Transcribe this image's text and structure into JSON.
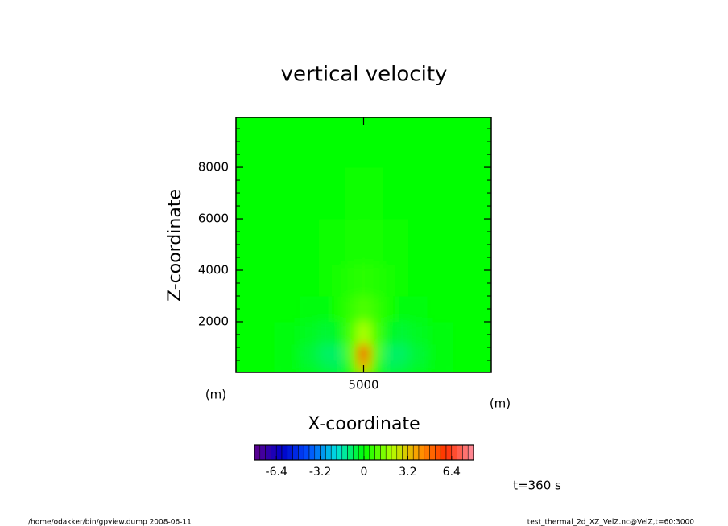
{
  "chart_data": {
    "type": "heatmap",
    "title": "vertical velocity",
    "xlabel": "X-coordinate",
    "ylabel": "Z-coordinate",
    "xunit": "(m)",
    "yunit": "(m)",
    "x": [
      0,
      1000,
      2000,
      3000,
      3500,
      4000,
      4500,
      5000,
      5500,
      6000,
      6500,
      7000,
      8000,
      9000,
      10000
    ],
    "y": [
      250,
      750,
      1500,
      2500,
      3500,
      5000,
      7000,
      9000
    ],
    "z": [
      [
        0,
        0,
        -0.1,
        -0.4,
        -0.7,
        -0.8,
        0.5,
        3.5,
        0.5,
        -0.8,
        -0.7,
        -0.4,
        -0.1,
        0,
        0
      ],
      [
        0,
        0,
        -0.1,
        -0.5,
        -0.9,
        -0.9,
        1.0,
        5.5,
        1.0,
        -0.9,
        -0.9,
        -0.5,
        -0.1,
        0,
        0
      ],
      [
        0,
        0,
        -0.1,
        -0.3,
        -0.5,
        -0.3,
        0.8,
        2.0,
        0.8,
        -0.3,
        -0.5,
        -0.3,
        -0.1,
        0,
        0
      ],
      [
        0,
        0,
        0,
        -0.1,
        -0.1,
        0.2,
        0.6,
        0.9,
        0.6,
        0.2,
        -0.1,
        -0.1,
        0,
        0,
        0
      ],
      [
        0,
        0,
        0,
        0,
        0.1,
        0.2,
        0.4,
        0.5,
        0.4,
        0.2,
        0.1,
        0,
        0,
        0,
        0
      ],
      [
        0,
        0,
        0,
        0,
        0.1,
        0.15,
        0.2,
        0.25,
        0.2,
        0.15,
        0.1,
        0,
        0,
        0,
        0
      ],
      [
        0,
        0,
        0,
        0,
        0,
        0.05,
        0.1,
        0.1,
        0.1,
        0.05,
        0,
        0,
        0,
        0,
        0
      ],
      [
        0,
        0,
        0,
        0,
        0,
        0,
        0,
        0,
        0,
        0,
        0,
        0,
        0,
        0,
        0
      ]
    ],
    "xlim": [
      0,
      10000
    ],
    "ylim": [
      30,
      9940
    ],
    "xticks": [
      5000
    ],
    "yticks": [
      2000,
      4000,
      6000,
      8000
    ],
    "colorscale": [
      "#60008c",
      "#0000c8",
      "#0050ff",
      "#00e0e0",
      "#00ff00",
      "#b0ff00",
      "#ff9900",
      "#ff3000",
      "#ff8fa0"
    ],
    "clim": [
      -8,
      8
    ],
    "cstep": 0.4,
    "cticks": [
      -6.4,
      -3.2,
      0,
      3.2,
      6.4
    ],
    "annotation": "t=360 s",
    "footer_left": "/home/odakker/bin/gpview.dump  2008-06-11",
    "footer_right": "test_thermal_2d_XZ_VelZ.nc@VelZ,t=60:3000"
  }
}
